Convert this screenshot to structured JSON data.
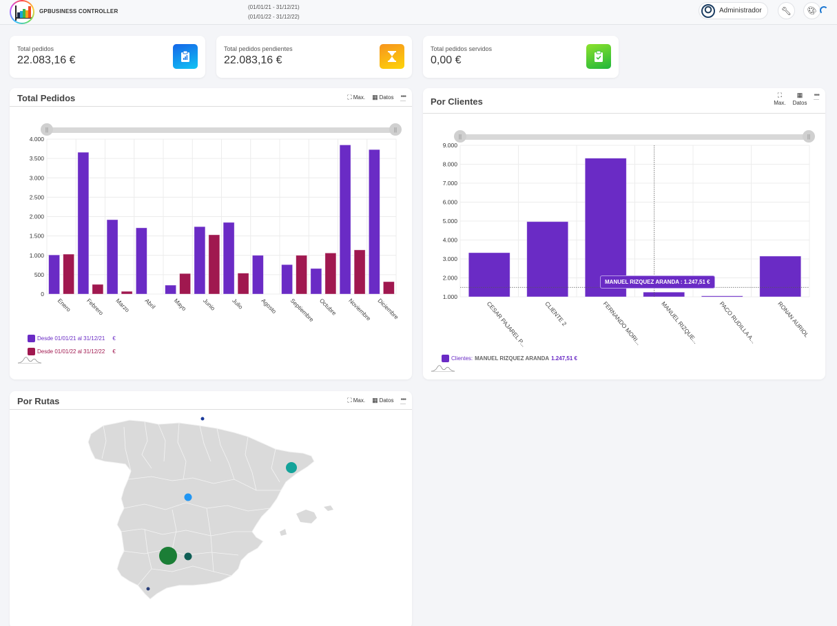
{
  "header": {
    "app_name": "GPBUSINESS CONTROLLER",
    "date_range_1": "(01/01/21 - 31/12/21)",
    "date_range_2": "(01/01/22 - 31/12/22)",
    "user_label": "Administrador",
    "icons": [
      "user-avatar-icon",
      "wrench-icon",
      "palette-icon",
      "loading-spinner-icon"
    ]
  },
  "kpis": [
    {
      "label": "Total pedidos",
      "value": "22.083,16 €",
      "icon": "clipboard-chart-icon",
      "color_from": "#1565e8",
      "color_to": "#10c4f4"
    },
    {
      "label": "Total pedidos pendientes",
      "value": "22.083,16 €",
      "icon": "hourglass-icon",
      "color_from": "#f7941d",
      "color_to": "#fdd40a"
    },
    {
      "label": "Total pedidos servidos",
      "value": "0,00 €",
      "icon": "clipboard-check-icon",
      "color_from": "#8de22d",
      "color_to": "#1fb63a"
    }
  ],
  "panel_tools": {
    "max_label": "Max.",
    "data_label": "Datos",
    "more_label": "•••"
  },
  "panels": {
    "total_pedidos": {
      "title": "Total Pedidos"
    },
    "por_clientes": {
      "title": "Por Clientes"
    },
    "por_rutas": {
      "title": "Por Rutas"
    }
  },
  "chart_data": [
    {
      "type": "bar",
      "title": "Total Pedidos",
      "categories": [
        "Enero",
        "Febrero",
        "Marzo",
        "Abril",
        "Mayo",
        "Junio",
        "Julio",
        "Agosto",
        "Septiembre",
        "Octubre",
        "Noviembre",
        "Diciembre"
      ],
      "series": [
        {
          "name": "Desde 01/01/21 al 31/12/21",
          "unit": "€",
          "color": "#6a2bc5",
          "values": [
            1010,
            3660,
            1920,
            1710,
            230,
            1740,
            1850,
            1000,
            760,
            660,
            3850,
            3730
          ]
        },
        {
          "name": "Desde 01/01/22 al 31/12/22",
          "unit": "€",
          "color": "#a0184f",
          "values": [
            1030,
            250,
            70,
            0,
            530,
            1530,
            540,
            0,
            1000,
            1060,
            1140,
            320
          ]
        }
      ],
      "ylim": [
        0,
        4000
      ],
      "yticks": [
        0,
        500,
        1000,
        1500,
        2000,
        2500,
        3000,
        3500,
        4000
      ],
      "ytick_labels": [
        "0",
        "500",
        "1.000",
        "1.500",
        "2.000",
        "2.500",
        "3.000",
        "3.500",
        "4.000"
      ],
      "grid": true,
      "legend": "bottom-left"
    },
    {
      "type": "bar",
      "title": "Por Clientes",
      "categories": [
        "CESAR PAJAREL P...",
        "CLIENTE 2",
        "FERNANDO MORI...",
        "MANUEL RIZQUE...",
        "PACO RUDILLA A...",
        "RONAN AURIOL"
      ],
      "series": [
        {
          "name": "Clientes",
          "color": "#6a2bc5",
          "values": [
            3330,
            4970,
            8320,
            1247.51,
            1050,
            3150
          ]
        }
      ],
      "ylim": [
        1000,
        9000
      ],
      "yticks": [
        1000,
        2000,
        3000,
        4000,
        5000,
        6000,
        7000,
        8000,
        9000
      ],
      "ytick_labels": [
        "1.000",
        "2.000",
        "3.000",
        "4.000",
        "5.000",
        "6.000",
        "7.000",
        "8.000",
        "9.000"
      ],
      "grid": true,
      "legend": "bottom-left",
      "tooltip": {
        "text": "MANUEL RIZQUEZ ARANDA : 1.247,51 €",
        "category_index": 3
      },
      "legend_prefix": "Clientes:",
      "legend_name": "MANUEL RIZQUEZ ARANDA",
      "legend_value": "1.247,51 €"
    }
  ],
  "map": {
    "region": "Spain",
    "bubbles": [
      {
        "name": "north",
        "color": "#1a3a9a",
        "size": "xs"
      },
      {
        "name": "northeast",
        "color": "#14a39a",
        "size": "m"
      },
      {
        "name": "center",
        "color": "#2196f3",
        "size": "s"
      },
      {
        "name": "south-west",
        "color": "#1b7e36",
        "size": "xl"
      },
      {
        "name": "south",
        "color": "#0f5e55",
        "size": "s"
      },
      {
        "name": "far-south",
        "color": "#2a3f7a",
        "size": "xs"
      }
    ]
  }
}
